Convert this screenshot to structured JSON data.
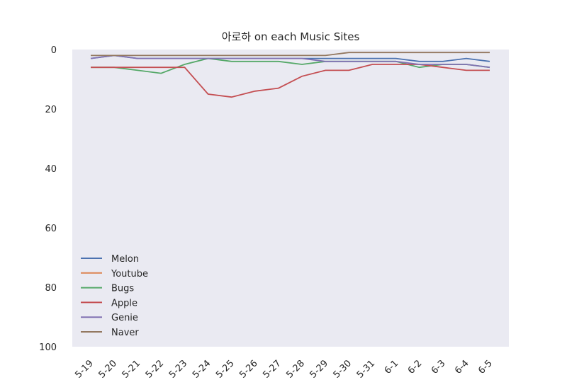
{
  "chart_data": {
    "type": "line",
    "title": "아로하 on each Music Sites",
    "categories": [
      "5-19",
      "5-20",
      "5-21",
      "5-22",
      "5-23",
      "5-24",
      "5-25",
      "5-26",
      "5-27",
      "5-28",
      "5-29",
      "5-30",
      "5-31",
      "6-1",
      "6-2",
      "6-3",
      "6-4",
      "6-5"
    ],
    "series": [
      {
        "name": "Melon",
        "color": "#4c72b0",
        "values": [
          3,
          2,
          3,
          3,
          3,
          3,
          3,
          3,
          3,
          3,
          3,
          3,
          3,
          3,
          4,
          4,
          3,
          4
        ]
      },
      {
        "name": "Youtube",
        "color": "#dd8452",
        "values": [
          null,
          null,
          null,
          null,
          null,
          null,
          null,
          null,
          null,
          null,
          null,
          null,
          null,
          null,
          null,
          null,
          null,
          null
        ]
      },
      {
        "name": "Bugs",
        "color": "#55a868",
        "values": [
          6,
          6,
          7,
          8,
          5,
          3,
          4,
          4,
          4,
          5,
          4,
          4,
          4,
          4,
          6,
          5,
          5,
          6
        ]
      },
      {
        "name": "Apple",
        "color": "#c44e52",
        "values": [
          6,
          6,
          6,
          6,
          6,
          15,
          16,
          14,
          13,
          9,
          7,
          7,
          5,
          5,
          5,
          6,
          7,
          7
        ]
      },
      {
        "name": "Genie",
        "color": "#8172b3",
        "values": [
          3,
          2,
          3,
          3,
          3,
          3,
          3,
          3,
          3,
          3,
          4,
          4,
          4,
          4,
          5,
          5,
          5,
          6
        ]
      },
      {
        "name": "Naver",
        "color": "#937860",
        "values": [
          2,
          2,
          2,
          2,
          2,
          2,
          2,
          2,
          2,
          2,
          2,
          1,
          1,
          1,
          1,
          1,
          1,
          1
        ]
      }
    ],
    "ylim": [
      100,
      0
    ],
    "yticks": [
      0,
      20,
      40,
      60,
      80,
      100
    ],
    "grid": false,
    "legend": "lower left"
  }
}
